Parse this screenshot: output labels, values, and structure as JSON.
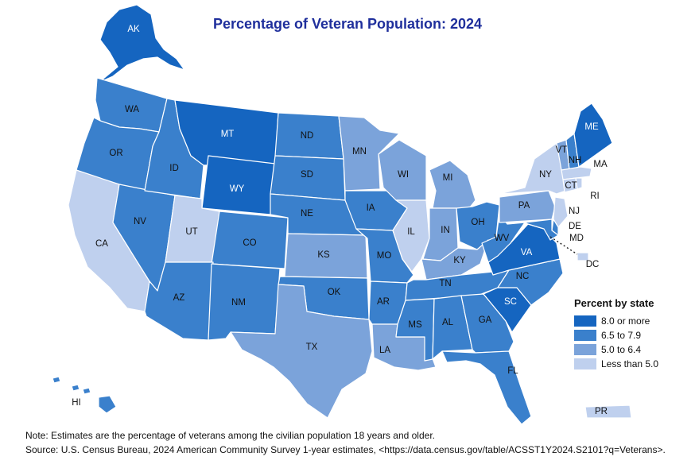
{
  "title": "Percentage of Veteran Population: 2024",
  "colors": {
    "c4": "#1565c0",
    "c3": "#3a80cc",
    "c2": "#7ba3da",
    "c1": "#bfd0ee",
    "title": "#1f2f9c"
  },
  "legend": {
    "title": "Percent by state",
    "items": [
      {
        "label": "8.0 or more",
        "cls": "c4"
      },
      {
        "label": "6.5 to 7.9",
        "cls": "c3"
      },
      {
        "label": "5.0 to 6.4",
        "cls": "c2"
      },
      {
        "label": "Less than 5.0",
        "cls": "c1"
      }
    ]
  },
  "states": {
    "WA": "c3",
    "OR": "c3",
    "CA": "c1",
    "NV": "c3",
    "ID": "c3",
    "MT": "c4",
    "WY": "c4",
    "UT": "c1",
    "AZ": "c3",
    "CO": "c3",
    "NM": "c3",
    "ND": "c3",
    "SD": "c3",
    "NE": "c3",
    "KS": "c2",
    "OK": "c3",
    "TX": "c2",
    "MN": "c2",
    "IA": "c3",
    "MO": "c3",
    "AR": "c3",
    "LA": "c2",
    "WI": "c2",
    "IL": "c1",
    "MI": "c2",
    "IN": "c2",
    "OH": "c3",
    "KY": "c2",
    "TN": "c3",
    "MS": "c3",
    "AL": "c3",
    "GA": "c3",
    "FL": "c3",
    "SC": "c4",
    "NC": "c3",
    "VA": "c4",
    "WV": "c3",
    "PA": "c2",
    "NY": "c1",
    "VT": "c2",
    "NH": "c3",
    "ME": "c4",
    "MA": "c1",
    "CT": "c1",
    "RI": "c1",
    "NJ": "c1",
    "DE": "c3",
    "MD": "c3",
    "DC": "c1",
    "AK": "c4",
    "HI": "c3",
    "PR": "c1"
  },
  "labels": {
    "AK": "AK",
    "WA": "WA",
    "OR": "OR",
    "CA": "CA",
    "NV": "NV",
    "ID": "ID",
    "MT": "MT",
    "WY": "WY",
    "UT": "UT",
    "AZ": "AZ",
    "CO": "CO",
    "NM": "NM",
    "ND": "ND",
    "SD": "SD",
    "NE": "NE",
    "KS": "KS",
    "OK": "OK",
    "TX": "TX",
    "MN": "MN",
    "IA": "IA",
    "MO": "MO",
    "AR": "AR",
    "LA": "LA",
    "WI": "WI",
    "IL": "IL",
    "MI": "MI",
    "IN": "IN",
    "OH": "OH",
    "KY": "KY",
    "TN": "TN",
    "MS": "MS",
    "AL": "AL",
    "GA": "GA",
    "FL": "FL",
    "SC": "SC",
    "NC": "NC",
    "VA": "VA",
    "WV": "WV",
    "PA": "PA",
    "NY": "NY",
    "VT": "VT",
    "NH": "NH",
    "ME": "ME",
    "MA": "MA",
    "CT": "CT",
    "RI": "RI",
    "NJ": "NJ",
    "DE": "DE",
    "MD": "MD",
    "DC": "DC",
    "HI": "HI",
    "PR": "PR"
  },
  "note": "Note: Estimates are the percentage of veterans among the civilian population 18 years and older.",
  "source": "Source: U.S. Census Bureau, 2024 American Community Survey 1-year estimates, <https://data.census.gov/table/ACSST1Y2024.S2101?q=Veterans>."
}
